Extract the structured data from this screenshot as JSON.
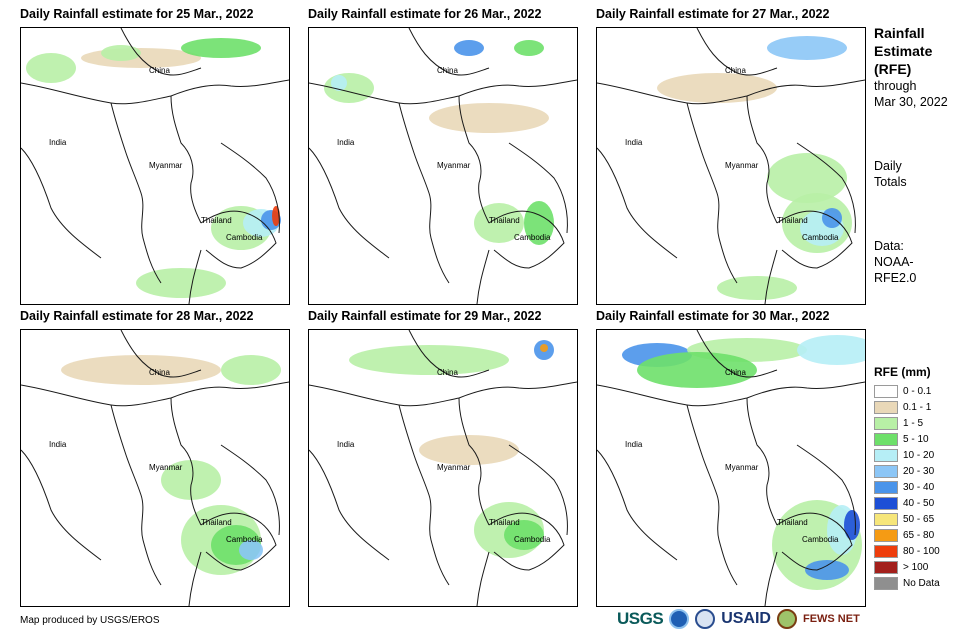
{
  "panels": [
    {
      "title": "Daily Rainfall estimate for 25 Mar., 2022"
    },
    {
      "title": "Daily Rainfall estimate for 26 Mar., 2022"
    },
    {
      "title": "Daily Rainfall estimate for 27 Mar., 2022"
    },
    {
      "title": "Daily Rainfall estimate for 28 Mar., 2022"
    },
    {
      "title": "Daily Rainfall estimate for 29 Mar., 2022"
    },
    {
      "title": "Daily Rainfall estimate for 30 Mar., 2022"
    }
  ],
  "map_labels": {
    "china": "China",
    "india": "India",
    "myanmar": "Myanmar",
    "thailand": "Thailand",
    "cambodia": "Cambodia"
  },
  "side": {
    "title_line1": "Rainfall",
    "title_line2": "Estimate",
    "title_line3": "(RFE)",
    "through": "through",
    "date": "Mar 30, 2022",
    "daily1": "Daily",
    "daily2": "Totals",
    "data1": "Data:",
    "data2": "NOAA-",
    "data3": "RFE2.0"
  },
  "legend": {
    "title": "RFE (mm)",
    "items": [
      {
        "label": "0 - 0.1",
        "color": "#ffffff"
      },
      {
        "label": "0.1 - 1",
        "color": "#e9d8b8"
      },
      {
        "label": "1 - 5",
        "color": "#b8f0a6"
      },
      {
        "label": "5 - 10",
        "color": "#6ee06a"
      },
      {
        "label": "10 - 20",
        "color": "#b6eef6"
      },
      {
        "label": "20 - 30",
        "color": "#8cc6f6"
      },
      {
        "label": "30 - 40",
        "color": "#4a94ea"
      },
      {
        "label": "40 - 50",
        "color": "#1d4fd6"
      },
      {
        "label": "50 - 65",
        "color": "#f6e67a"
      },
      {
        "label": "65 - 80",
        "color": "#f59b14"
      },
      {
        "label": "80 - 100",
        "color": "#ee3d0c"
      },
      {
        "label": "> 100",
        "color": "#a3201c"
      },
      {
        "label": "No Data",
        "color": "#8f8f8f"
      }
    ]
  },
  "footer": {
    "credit": "Map produced by USGS/EROS"
  },
  "logos": {
    "usgs": "USGS",
    "usaid": "USAID",
    "fewsnet": "FEWS NET"
  }
}
